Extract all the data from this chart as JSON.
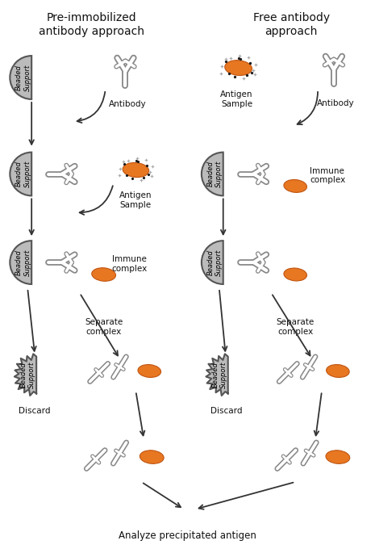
{
  "title_left": "Pre-immobilized\nantibody approach",
  "title_right": "Free antibody\napproach",
  "bead_color": "#bbbbbb",
  "bead_outline": "#555555",
  "antigen_color": "#E87722",
  "antigen_edge": "#c05510",
  "ab_outer": "#888888",
  "ab_white": "#ffffff",
  "bg_color": "#ffffff",
  "text_color": "#111111",
  "arrow_color": "#333333",
  "label_antibody": "Antibody",
  "label_antigen": "Antigen\nSample",
  "label_immune": "Immune\ncomplex",
  "label_separate": "Separate\ncomplex",
  "label_discard": "Discard",
  "label_beaded": "Beaded\nSupport",
  "label_analyze": "Analyze precipitated antigen",
  "fs_title": 10,
  "fs_label": 7.5,
  "fs_small": 6.0
}
